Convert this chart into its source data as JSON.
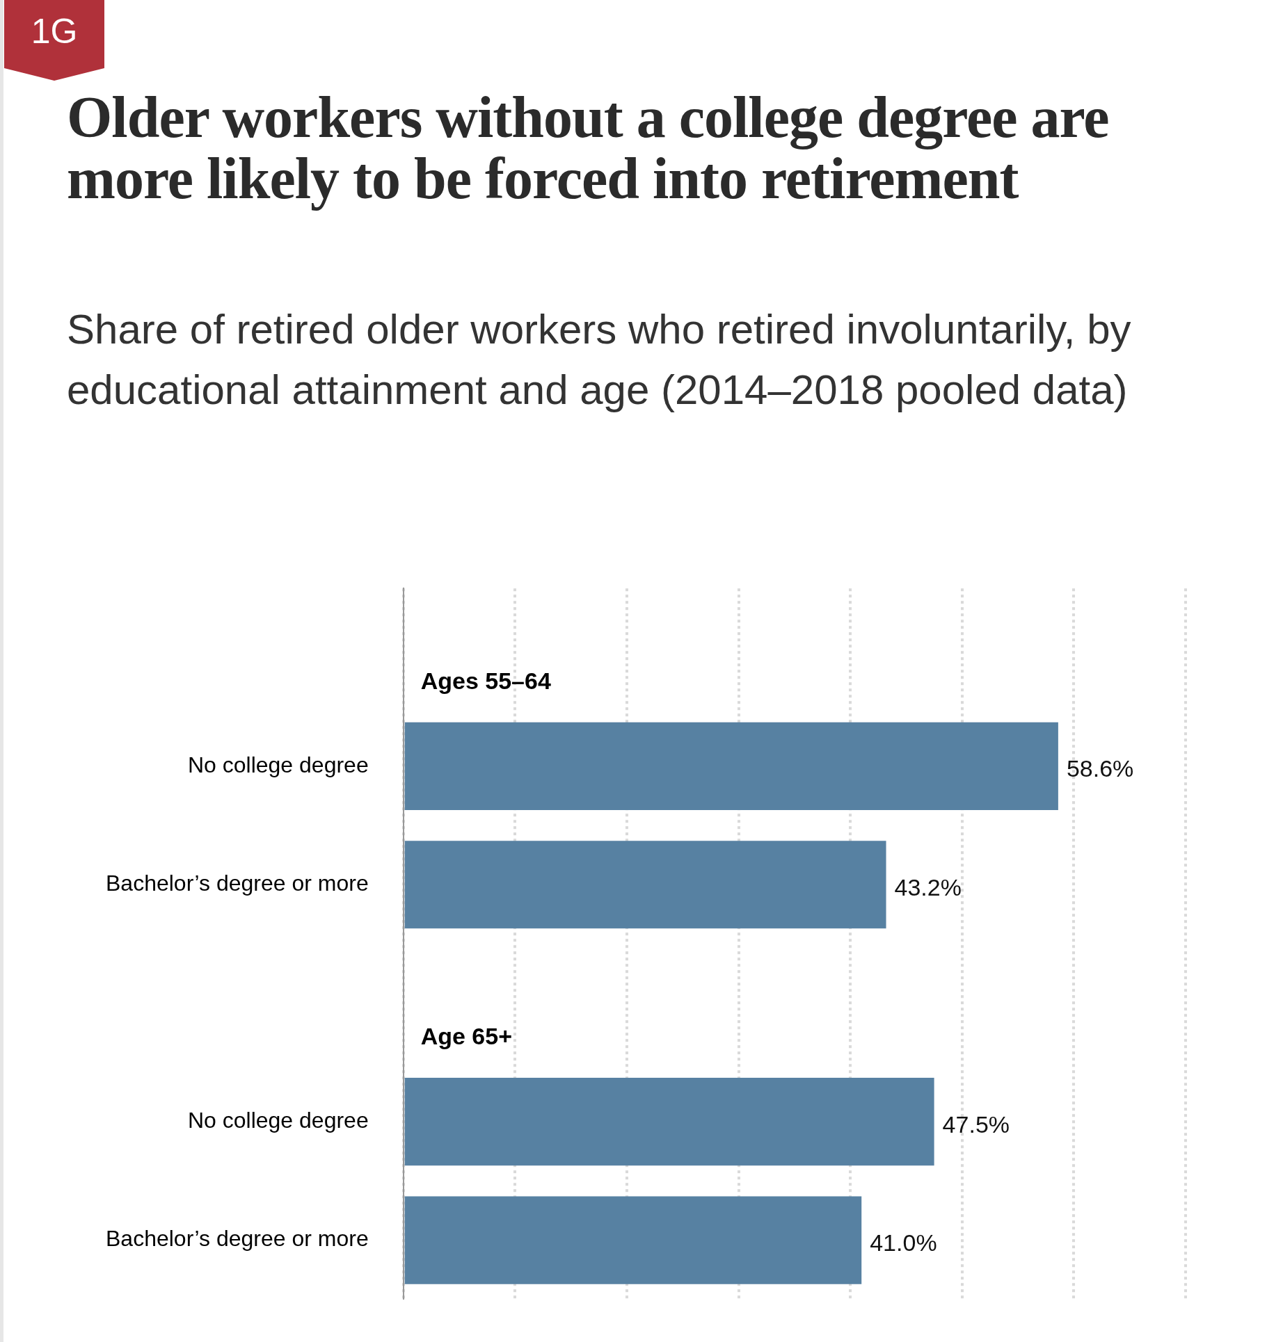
{
  "chart_data": {
    "type": "bar",
    "orientation": "horizontal",
    "title": "Older workers without a college degree are more likely to be forced into retirement",
    "subtitle": "Share of retired older workers who retired involuntarily, by educational attainment and age (2014–2018 pooled data)",
    "categories": [
      "Ages 55–64",
      "No college degree",
      "Bachelor’s degree or more",
      "Age 65+",
      "No college degree",
      "Bachelor’s degree or more"
    ],
    "values": [
      null,
      58.6,
      43.2,
      null,
      47.5,
      41.0
    ],
    "value_labels": [
      null,
      "58.6%",
      "43.2%",
      null,
      "47.5%",
      "41.0%"
    ],
    "color": "#5781a2",
    "xlim": [
      0,
      70
    ],
    "xticks": [
      {
        "value": 0,
        "label": null
      },
      {
        "value": 10,
        "label": null
      },
      {
        "value": 20,
        "label": null
      },
      {
        "value": 30,
        "label": null
      },
      {
        "value": 40,
        "label": null
      },
      {
        "value": 50,
        "label": null
      },
      {
        "value": 60,
        "label": null
      },
      {
        "value": 70,
        "label": null
      }
    ],
    "tick_labels": "y",
    "grid": "x",
    "legend": false,
    "annotations": [
      "1G"
    ]
  }
}
